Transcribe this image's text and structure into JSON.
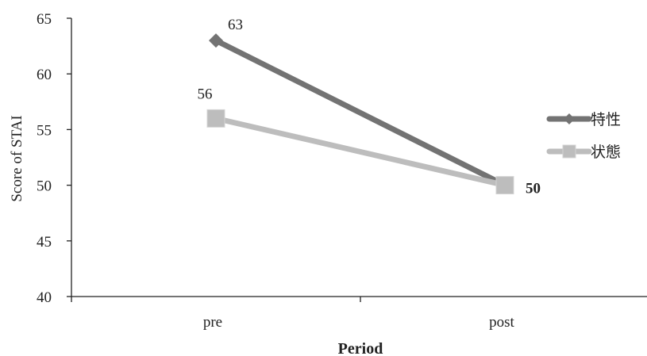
{
  "chart_data": {
    "type": "line",
    "categories": [
      "pre",
      "post"
    ],
    "series": [
      {
        "name": "特性",
        "values": [
          63,
          50
        ],
        "color": "#737373",
        "marker": "diamond"
      },
      {
        "name": "状態",
        "values": [
          56,
          50
        ],
        "color": "#bdbdbd",
        "marker": "square"
      }
    ],
    "data_labels": [
      {
        "series": 0,
        "index": 0,
        "text": "63"
      },
      {
        "series": 1,
        "index": 0,
        "text": "56"
      },
      {
        "series": 0,
        "index": 1,
        "text": "50"
      }
    ],
    "xlabel": "Period",
    "ylabel": "Score of STAI",
    "ylim": [
      40,
      65
    ],
    "yticks": [
      "40",
      "45",
      "50",
      "55",
      "60",
      "65"
    ],
    "grid": false,
    "legend_position": "right"
  }
}
